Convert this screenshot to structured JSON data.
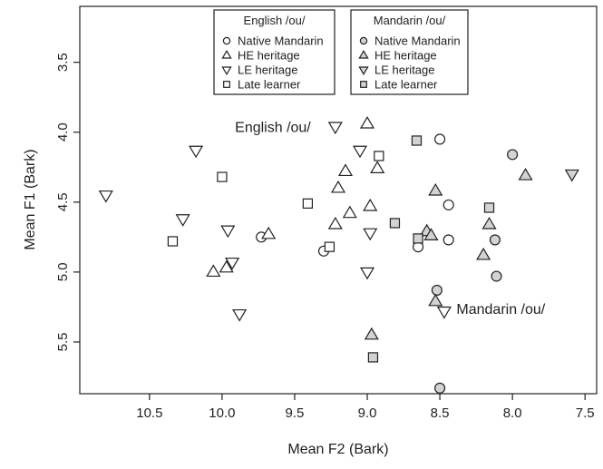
{
  "chart_data": {
    "type": "scatter",
    "xlabel": "Mean F2 (Bark)",
    "ylabel": "Mean F1 (Bark)",
    "xlim": [
      10.98,
      7.42
    ],
    "ylim": [
      3.1,
      5.87
    ],
    "x_reversed": true,
    "y_reversed": true,
    "grid": false,
    "xticks": [
      10.5,
      10.0,
      9.5,
      9.0,
      8.5,
      8.0,
      7.5
    ],
    "xtick_labels": [
      "10.5",
      "10.0",
      "9.5",
      "9.0",
      "8.5",
      "8.0",
      "7.5"
    ],
    "yticks": [
      3.5,
      4.0,
      4.5,
      5.0,
      5.5
    ],
    "ytick_labels": [
      "3.5",
      "4.0",
      "4.5",
      "5.0",
      "5.5"
    ],
    "annotations": [
      {
        "text": "English /ou/",
        "x": 9.65,
        "y": 4.0
      },
      {
        "text": "Mandarin /ou/",
        "x": 8.08,
        "y": 5.3
      }
    ],
    "legends": [
      {
        "title": "English /ou/",
        "fill": "#ffffff",
        "position": "top-center",
        "entries": [
          {
            "label": "Native Mandarin",
            "marker": "circle"
          },
          {
            "label": "HE heritage",
            "marker": "triangle-up"
          },
          {
            "label": "LE heritage",
            "marker": "triangle-down"
          },
          {
            "label": "Late learner",
            "marker": "square"
          }
        ]
      },
      {
        "title": "Mandarin /ou/",
        "fill": "#d3d3d3",
        "position": "top-center",
        "entries": [
          {
            "label": "Native Mandarin",
            "marker": "circle"
          },
          {
            "label": "HE heritage",
            "marker": "triangle-up"
          },
          {
            "label": "LE heritage",
            "marker": "triangle-down"
          },
          {
            "label": "Late learner",
            "marker": "square"
          }
        ]
      }
    ],
    "series": [
      {
        "vowel": "English",
        "group": "Native Mandarin",
        "marker": "circle",
        "fill": "#ffffff",
        "points": [
          [
            8.5,
            4.05
          ],
          [
            8.44,
            4.52
          ],
          [
            8.44,
            4.77
          ],
          [
            8.65,
            4.82
          ],
          [
            9.73,
            4.75
          ],
          [
            9.3,
            4.85
          ]
        ]
      },
      {
        "vowel": "English",
        "group": "HE heritage",
        "marker": "triangle-up",
        "fill": "#ffffff",
        "points": [
          [
            9.0,
            3.94
          ],
          [
            8.93,
            4.26
          ],
          [
            9.15,
            4.28
          ],
          [
            9.2,
            4.4
          ],
          [
            8.98,
            4.53
          ],
          [
            9.12,
            4.58
          ],
          [
            9.22,
            4.66
          ],
          [
            9.68,
            4.73
          ],
          [
            9.97,
            4.97
          ],
          [
            10.06,
            5.0
          ]
        ]
      },
      {
        "vowel": "English",
        "group": "LE heritage",
        "marker": "triangle-down",
        "fill": "#ffffff",
        "points": [
          [
            10.8,
            4.45
          ],
          [
            10.18,
            4.13
          ],
          [
            10.27,
            4.62
          ],
          [
            9.22,
            3.96
          ],
          [
            9.05,
            4.13
          ],
          [
            9.96,
            4.7
          ],
          [
            8.98,
            4.72
          ],
          [
            9.93,
            4.93
          ],
          [
            9.0,
            5.0
          ],
          [
            9.88,
            5.3
          ],
          [
            8.47,
            5.28
          ]
        ]
      },
      {
        "vowel": "English",
        "group": "Late learner",
        "marker": "square",
        "fill": "#ffffff",
        "points": [
          [
            8.92,
            4.17
          ],
          [
            10.0,
            4.32
          ],
          [
            9.41,
            4.51
          ],
          [
            10.34,
            4.78
          ],
          [
            9.26,
            4.82
          ]
        ]
      },
      {
        "vowel": "Mandarin",
        "group": "Native Mandarin",
        "marker": "circle",
        "fill": "#d3d3d3",
        "points": [
          [
            8.0,
            4.16
          ],
          [
            8.12,
            4.77
          ],
          [
            8.11,
            5.03
          ],
          [
            8.52,
            5.13
          ],
          [
            8.5,
            5.83
          ]
        ]
      },
      {
        "vowel": "Mandarin",
        "group": "HE heritage",
        "marker": "triangle-up",
        "fill": "#d3d3d3",
        "points": [
          [
            7.91,
            4.31
          ],
          [
            8.53,
            4.42
          ],
          [
            8.16,
            4.66
          ],
          [
            8.59,
            4.71
          ],
          [
            8.56,
            4.74
          ],
          [
            8.2,
            4.88
          ],
          [
            8.53,
            5.21
          ],
          [
            8.97,
            5.45
          ]
        ]
      },
      {
        "vowel": "Mandarin",
        "group": "LE heritage",
        "marker": "triangle-down",
        "fill": "#d3d3d3",
        "points": [
          [
            7.59,
            4.3
          ]
        ]
      },
      {
        "vowel": "Mandarin",
        "group": "Late learner",
        "marker": "square",
        "fill": "#d3d3d3",
        "points": [
          [
            8.66,
            4.06
          ],
          [
            8.16,
            4.54
          ],
          [
            8.81,
            4.65
          ],
          [
            8.65,
            4.76
          ],
          [
            8.96,
            5.61
          ]
        ]
      }
    ]
  }
}
